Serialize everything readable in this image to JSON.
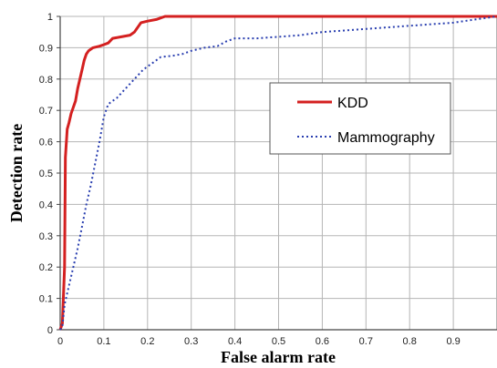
{
  "chart_data": {
    "type": "line",
    "xlabel": "False alarm rate",
    "ylabel": "Detection rate",
    "xlim": [
      0,
      1
    ],
    "ylim": [
      0,
      1
    ],
    "x_ticks": [
      "0",
      "0.1",
      "0.2",
      "0.3",
      "0.4",
      "0.5",
      "0.6",
      "0.7",
      "0.8",
      "0.9"
    ],
    "y_ticks": [
      "0",
      "0.1",
      "0.2",
      "0.3",
      "0.4",
      "0.5",
      "0.6",
      "0.7",
      "0.8",
      "0.9",
      "1"
    ],
    "grid": true,
    "legend_position": "right",
    "series": [
      {
        "name": "KDD",
        "color": "#d42020",
        "style": "solid",
        "points": [
          [
            0,
            0
          ],
          [
            0.005,
            0.02
          ],
          [
            0.01,
            0.2
          ],
          [
            0.012,
            0.55
          ],
          [
            0.016,
            0.64
          ],
          [
            0.02,
            0.66
          ],
          [
            0.025,
            0.69
          ],
          [
            0.03,
            0.71
          ],
          [
            0.035,
            0.73
          ],
          [
            0.04,
            0.77
          ],
          [
            0.045,
            0.8
          ],
          [
            0.05,
            0.83
          ],
          [
            0.055,
            0.86
          ],
          [
            0.06,
            0.88
          ],
          [
            0.065,
            0.89
          ],
          [
            0.075,
            0.9
          ],
          [
            0.09,
            0.905
          ],
          [
            0.1,
            0.91
          ],
          [
            0.11,
            0.915
          ],
          [
            0.12,
            0.93
          ],
          [
            0.14,
            0.935
          ],
          [
            0.16,
            0.94
          ],
          [
            0.17,
            0.95
          ],
          [
            0.18,
            0.97
          ],
          [
            0.185,
            0.98
          ],
          [
            0.2,
            0.985
          ],
          [
            0.22,
            0.99
          ],
          [
            0.23,
            0.995
          ],
          [
            0.24,
            1.0
          ],
          [
            1.0,
            1.0
          ]
        ]
      },
      {
        "name": "Mammography",
        "color": "#2a3fb0",
        "style": "dotted",
        "points": [
          [
            0,
            0
          ],
          [
            0.005,
            0.01
          ],
          [
            0.01,
            0.08
          ],
          [
            0.02,
            0.14
          ],
          [
            0.03,
            0.2
          ],
          [
            0.04,
            0.26
          ],
          [
            0.05,
            0.33
          ],
          [
            0.06,
            0.4
          ],
          [
            0.07,
            0.46
          ],
          [
            0.08,
            0.53
          ],
          [
            0.09,
            0.6
          ],
          [
            0.1,
            0.68
          ],
          [
            0.11,
            0.72
          ],
          [
            0.13,
            0.74
          ],
          [
            0.15,
            0.77
          ],
          [
            0.17,
            0.8
          ],
          [
            0.19,
            0.83
          ],
          [
            0.21,
            0.85
          ],
          [
            0.23,
            0.87
          ],
          [
            0.26,
            0.875
          ],
          [
            0.28,
            0.88
          ],
          [
            0.3,
            0.89
          ],
          [
            0.33,
            0.9
          ],
          [
            0.36,
            0.905
          ],
          [
            0.38,
            0.92
          ],
          [
            0.4,
            0.93
          ],
          [
            0.45,
            0.93
          ],
          [
            0.5,
            0.935
          ],
          [
            0.55,
            0.94
          ],
          [
            0.6,
            0.95
          ],
          [
            0.65,
            0.955
          ],
          [
            0.7,
            0.96
          ],
          [
            0.75,
            0.965
          ],
          [
            0.8,
            0.97
          ],
          [
            0.85,
            0.975
          ],
          [
            0.9,
            0.98
          ],
          [
            0.95,
            0.99
          ],
          [
            1.0,
            1.0
          ]
        ]
      }
    ]
  }
}
